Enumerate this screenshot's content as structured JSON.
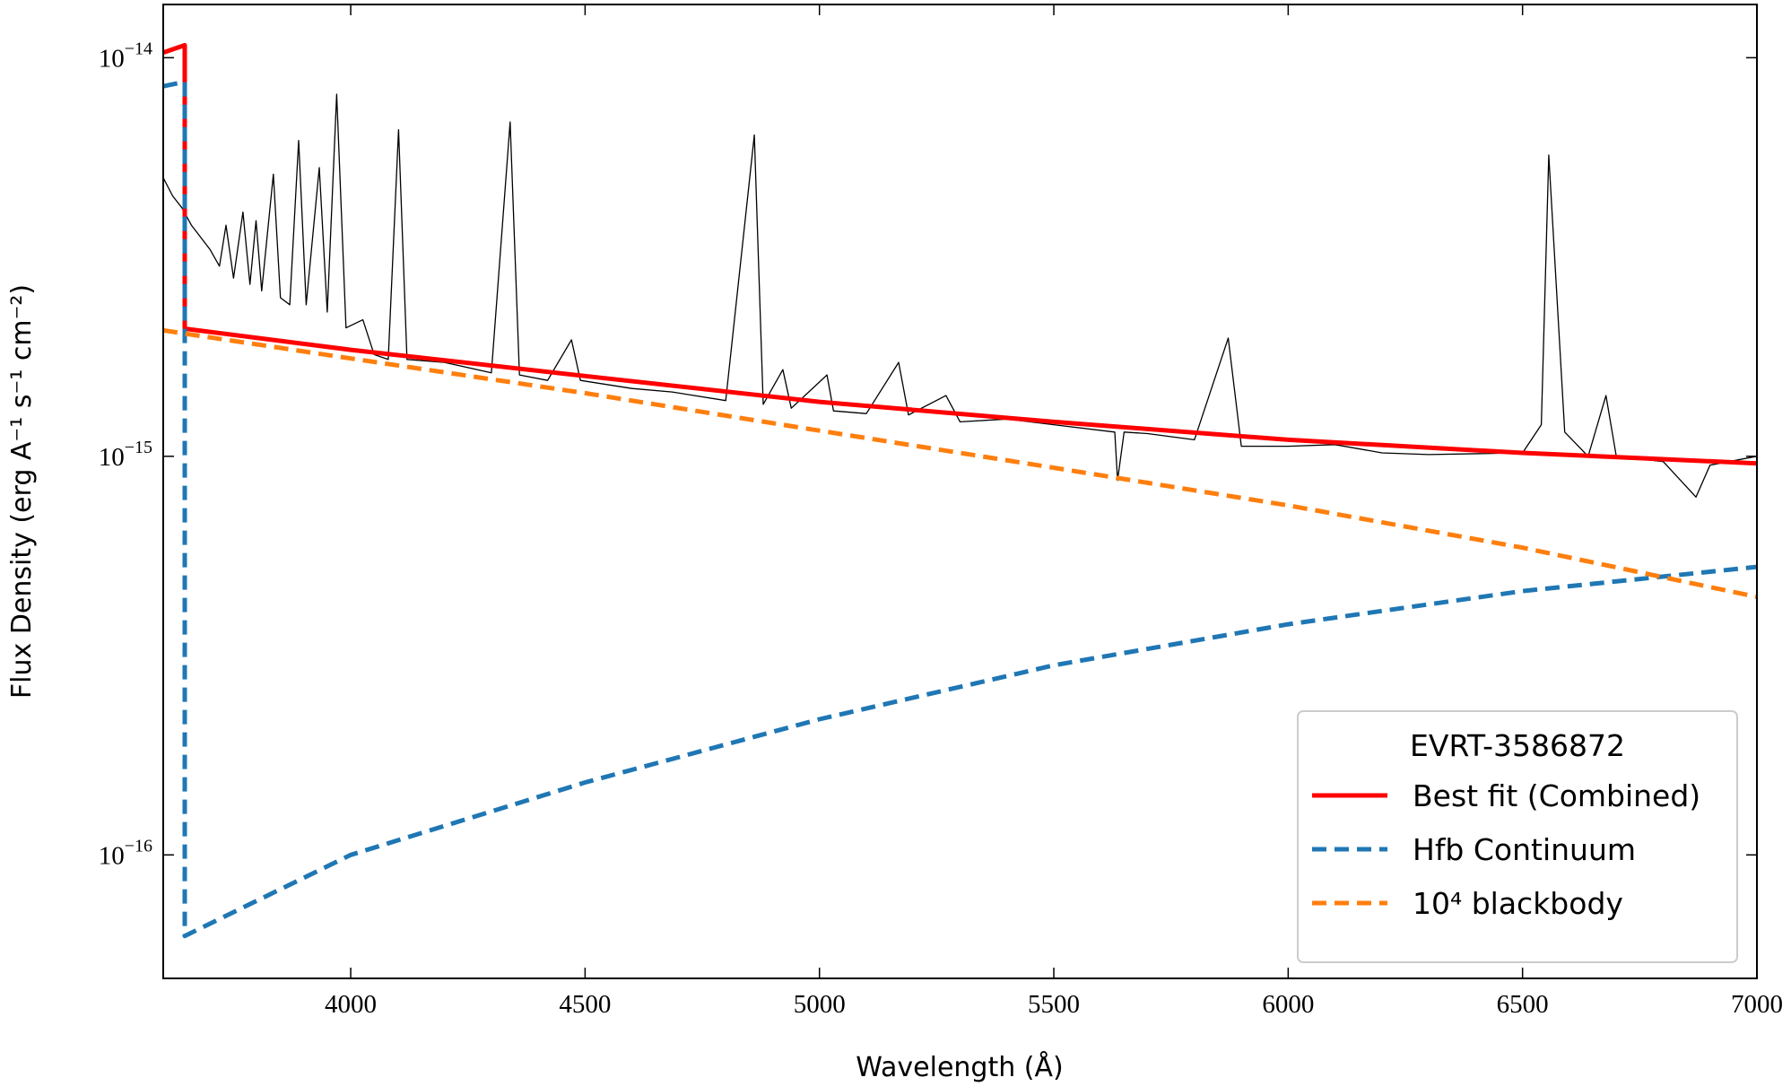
{
  "chart_data": {
    "type": "line",
    "xlabel": "Wavelength (Å)",
    "ylabel": "Flux Density (erg A⁻¹ s⁻¹ cm⁻²)",
    "xlim": [
      3600,
      7000
    ],
    "ylim": [
      4.9e-17,
      1.36e-14
    ],
    "yscale": "log",
    "xticks": [
      4000,
      4500,
      5000,
      5500,
      6000,
      6500,
      7000
    ],
    "yticks": [
      {
        "value": 1e-14,
        "label": "10",
        "exponent": "−14"
      },
      {
        "value": 1e-15,
        "label": "10",
        "exponent": "−15"
      },
      {
        "value": 1e-16,
        "label": "10",
        "exponent": "−16"
      }
    ],
    "legend": {
      "title": "EVRT-3586872",
      "loc": "lower right"
    },
    "series": [
      {
        "name": null,
        "color": "#000000",
        "linestyle": "solid",
        "x": [
          3600,
          3620,
          3640,
          3660,
          3700,
          3720,
          3734,
          3750,
          3770,
          3785,
          3798,
          3810,
          3835,
          3850,
          3870,
          3889,
          3905,
          3933,
          3950,
          3970,
          3990,
          4026,
          4050,
          4080,
          4102,
          4120,
          4200,
          4300,
          4340,
          4360,
          4420,
          4471,
          4490,
          4600,
          4686,
          4800,
          4861,
          4880,
          4922,
          4940,
          5016,
          5030,
          5100,
          5169,
          5190,
          5270,
          5300,
          5400,
          5500,
          5630,
          5636,
          5650,
          5700,
          5800,
          5872,
          5900,
          6000,
          6100,
          6200,
          6300,
          6500,
          6540,
          6556,
          6590,
          6640,
          6678,
          6700,
          6800,
          6870,
          6900,
          7000
        ],
        "values": [
          5e-15,
          4.5e-15,
          4.2e-15,
          3.8e-15,
          3.3e-15,
          3e-15,
          3.8e-15,
          2.8e-15,
          4.1e-15,
          2.7e-15,
          3.9e-15,
          2.6e-15,
          5.1e-15,
          2.5e-15,
          2.4e-15,
          6.2e-15,
          2.4e-15,
          5.3e-15,
          2.3e-15,
          8.1e-15,
          2.1e-15,
          2.2e-15,
          1.8e-15,
          1.75e-15,
          6.6e-15,
          1.75e-15,
          1.72e-15,
          1.62e-15,
          6.9e-15,
          1.6e-15,
          1.55e-15,
          1.96e-15,
          1.55e-15,
          1.48e-15,
          1.45e-15,
          1.38e-15,
          6.4e-15,
          1.35e-15,
          1.65e-15,
          1.32e-15,
          1.6e-15,
          1.3e-15,
          1.28e-15,
          1.72e-15,
          1.27e-15,
          1.42e-15,
          1.22e-15,
          1.24e-15,
          1.2e-15,
          1.15e-15,
          8.7e-16,
          1.15e-15,
          1.14e-15,
          1.1e-15,
          1.98e-15,
          1.06e-15,
          1.06e-15,
          1.07e-15,
          1.02e-15,
          1.01e-15,
          1.02e-15,
          1.2e-15,
          5.7e-15,
          1.15e-15,
          1e-15,
          1.42e-15,
          1e-15,
          9.7e-16,
          7.9e-16,
          9.5e-16,
          1e-15
        ]
      },
      {
        "name": "Best fit (Combined)",
        "color": "#ff0000",
        "linestyle": "solid",
        "x": [
          3600,
          3646,
          3646,
          4000,
          4500,
          5000,
          5500,
          6000,
          6500,
          7000
        ],
        "values": [
          1.03e-14,
          1.075e-14,
          2.09e-15,
          1.85e-15,
          1.59e-15,
          1.37e-15,
          1.22e-15,
          1.1e-15,
          1.02e-15,
          9.6e-16
        ]
      },
      {
        "name": "Hfb Continuum",
        "color": "#1f77b4",
        "linestyle": "dashed",
        "x": [
          3600,
          3646,
          3646,
          4000,
          4500,
          5000,
          5500,
          6000,
          6500,
          7000
        ],
        "values": [
          8.48e-15,
          8.7e-15,
          6.26e-17,
          1e-16,
          1.52e-16,
          2.19e-16,
          2.99e-16,
          3.79e-16,
          4.59e-16,
          5.28e-16
        ]
      },
      {
        "name": "10⁴ blackbody",
        "color": "#ff7f0e",
        "linestyle": "dashed",
        "x": [
          3600,
          4000,
          4500,
          5000,
          5500,
          6000,
          6500,
          7000
        ],
        "values": [
          2.07e-15,
          1.76e-15,
          1.44e-15,
          1.16e-15,
          9.36e-16,
          7.53e-16,
          5.9e-16,
          4.44e-16
        ]
      }
    ]
  }
}
